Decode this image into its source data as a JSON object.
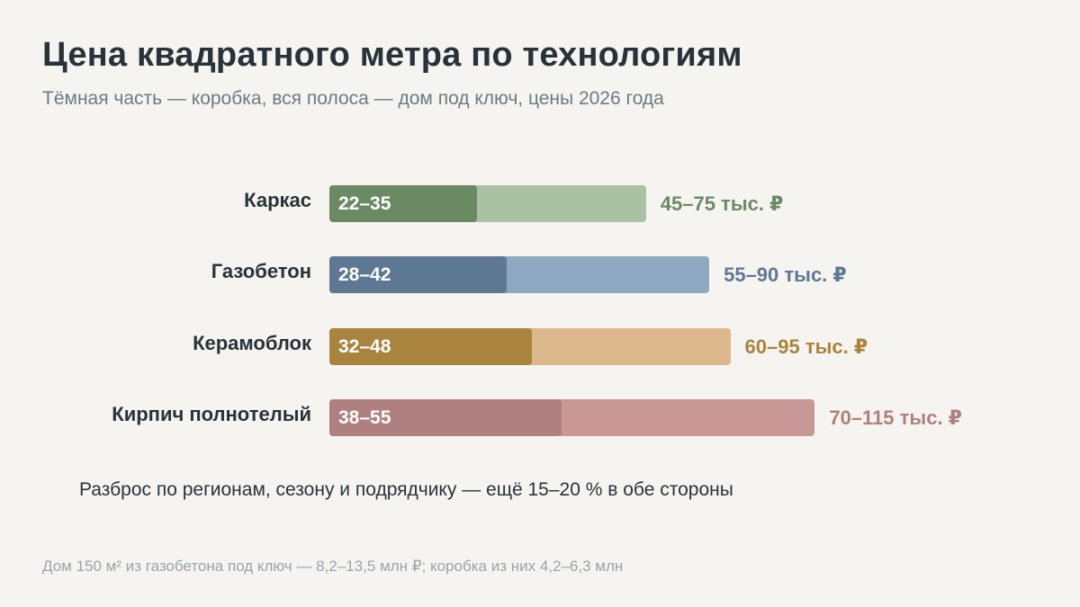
{
  "title": "Цена квадратного метра по технологиям",
  "subtitle": "Тёмная часть — коробка, вся полоса — дом под ключ, цены 2026 года",
  "note": "Разброс по регионам, сезону и подрядчику — ещё 15–20 % в обе стороны",
  "footnote": "Дом 150 м² из газобетона под ключ — 8,2–13,5 млн ₽; коробка из них 4,2–6,3 млн",
  "chart_data": {
    "type": "bar",
    "orientation": "horizontal",
    "unit": "тыс. ₽",
    "categories": [
      "Каркас",
      "Газобетон",
      "Керамоблок",
      "Кирпич полнотелый"
    ],
    "series": [
      {
        "name": "коробка",
        "values": [
          [
            22,
            35
          ],
          [
            28,
            42
          ],
          [
            32,
            48
          ],
          [
            38,
            55
          ]
        ],
        "labels": [
          "22–35",
          "28–42",
          "32–48",
          "38–55"
        ],
        "colors": [
          "#6b8a64",
          "#5e7893",
          "#a8843f",
          "#af807f"
        ]
      },
      {
        "name": "дом под ключ",
        "values": [
          [
            45,
            75
          ],
          [
            55,
            90
          ],
          [
            60,
            95
          ],
          [
            70,
            115
          ]
        ],
        "labels": [
          "45–75 тыс. ₽",
          "55–90 тыс. ₽",
          "60–95 тыс. ₽",
          "70–115 тыс. ₽"
        ],
        "colors": [
          "#abc1a4",
          "#8fa8c2",
          "#dcb88c",
          "#c99896"
        ],
        "label_colors": [
          "#6b8a64",
          "#5e7893",
          "#a8843f",
          "#af807f"
        ]
      }
    ],
    "bar_extent": "upper bound of range",
    "grid": false,
    "legend": "none"
  }
}
